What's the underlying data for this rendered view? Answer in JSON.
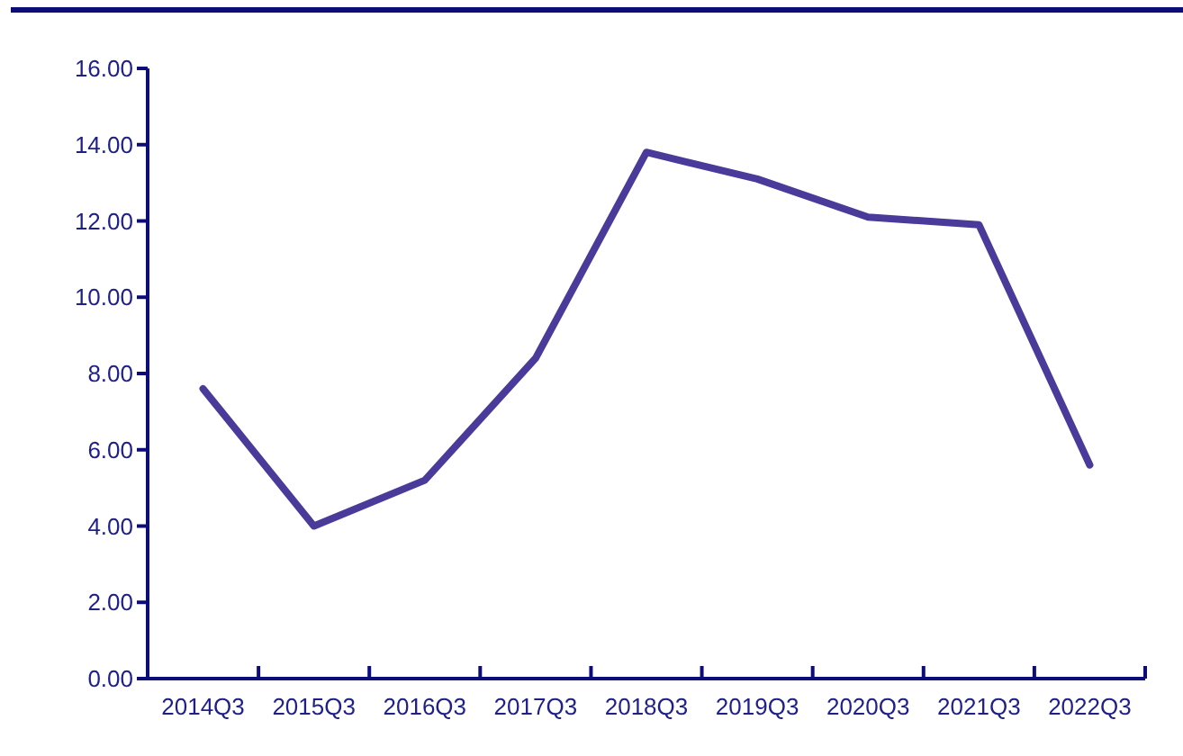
{
  "chart_data": {
    "type": "line",
    "categories": [
      "2014Q3",
      "2015Q3",
      "2016Q3",
      "2017Q3",
      "2018Q3",
      "2019Q3",
      "2020Q3",
      "2021Q3",
      "2022Q3"
    ],
    "series": [
      {
        "color": "#4a3a9a",
        "values": [
          7.6,
          4.0,
          5.2,
          8.4,
          13.8,
          13.1,
          12.1,
          11.9,
          5.6
        ]
      }
    ],
    "ylim": [
      0,
      16
    ],
    "yticks": [
      {
        "value": 0,
        "label": "0.00"
      },
      {
        "value": 2,
        "label": "2.00"
      },
      {
        "value": 4,
        "label": "4.00"
      },
      {
        "value": 6,
        "label": "6.00"
      },
      {
        "value": 8,
        "label": "8.00"
      },
      {
        "value": 10,
        "label": "10.00"
      },
      {
        "value": 12,
        "label": "12.00"
      },
      {
        "value": 14,
        "label": "14.00"
      },
      {
        "value": 16,
        "label": "16.00"
      }
    ],
    "grid": false,
    "legend": false,
    "marker": "none",
    "line_style": "solid"
  }
}
